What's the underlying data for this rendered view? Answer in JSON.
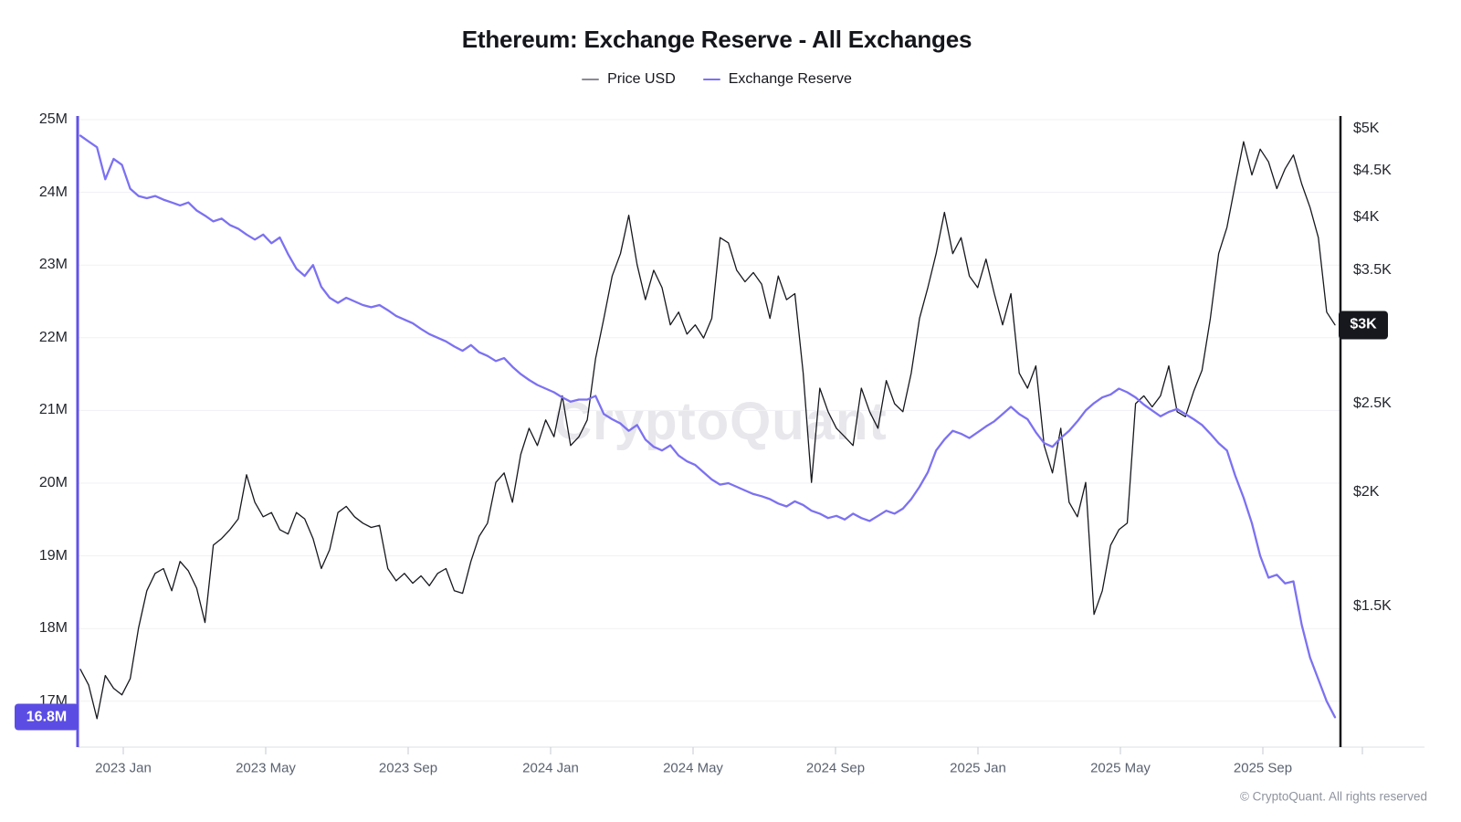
{
  "header": {
    "title": "Ethereum: Exchange Reserve - All Exchanges"
  },
  "legend": {
    "items": [
      {
        "label": "Price USD",
        "color": "#8b8b94"
      },
      {
        "label": "Exchange Reserve",
        "color": "#7c71f2"
      }
    ]
  },
  "watermark": "CryptoQuant",
  "footer": {
    "copyright": "© CryptoQuant. All rights reserved"
  },
  "badges": {
    "reserve_last": {
      "text": "16.8M",
      "bg": "#5b4de4"
    },
    "price_last": {
      "text": "$3K",
      "bg": "#17181d"
    }
  },
  "axes": {
    "left": {
      "labels": [
        "25M",
        "24M",
        "23M",
        "22M",
        "21M",
        "20M",
        "19M",
        "18M",
        "17M"
      ],
      "values": [
        25,
        24,
        23,
        22,
        21,
        20,
        19,
        18,
        17
      ]
    },
    "right": {
      "labels": [
        "$5K",
        "$4.5K",
        "$4K",
        "$3.5K",
        "$3K",
        "$2.5K",
        "$2K",
        "$1.5K"
      ],
      "values": [
        5000,
        4500,
        4000,
        3500,
        3000,
        2500,
        2000,
        1500
      ]
    },
    "x": {
      "labels": [
        "2023 Jan",
        "2023 May",
        "2023 Sep",
        "2024 Jan",
        "2024 May",
        "2024 Sep",
        "2025 Jan",
        "2025 May",
        "2025 Sep"
      ]
    }
  },
  "chart_data": {
    "type": "line",
    "title": "Ethereum: Exchange Reserve - All Exchanges",
    "x_range": [
      "2022-11-24",
      "2025-11-01"
    ],
    "sampling": "~weekly (152 points per series)",
    "legend_position": "top-center",
    "grid": "horizontal, faint",
    "left_axis": {
      "name": "Exchange Reserve",
      "unit": "M ETH",
      "scale": "linear",
      "ticks": [
        25,
        24,
        23,
        22,
        21,
        20,
        19,
        18,
        17
      ],
      "last_value_label": "16.8M"
    },
    "right_axis": {
      "name": "Price USD",
      "unit": "USD",
      "scale": "log",
      "ticks": [
        5000,
        4500,
        4000,
        3500,
        3000,
        2500,
        2000,
        1500
      ],
      "last_value_label": "$3K"
    },
    "series": [
      {
        "name": "Price USD",
        "axis": "right",
        "color": "#17181d",
        "unit": "USD",
        "values": [
          1280,
          1230,
          1130,
          1260,
          1220,
          1200,
          1250,
          1420,
          1560,
          1630,
          1650,
          1560,
          1680,
          1640,
          1570,
          1440,
          1750,
          1780,
          1820,
          1870,
          2090,
          1950,
          1880,
          1900,
          1820,
          1800,
          1900,
          1870,
          1780,
          1650,
          1730,
          1900,
          1930,
          1880,
          1850,
          1830,
          1840,
          1650,
          1600,
          1630,
          1590,
          1620,
          1580,
          1630,
          1650,
          1560,
          1550,
          1680,
          1790,
          1850,
          2050,
          2100,
          1950,
          2200,
          2350,
          2250,
          2400,
          2300,
          2550,
          2250,
          2300,
          2400,
          2800,
          3100,
          3450,
          3650,
          4020,
          3550,
          3250,
          3500,
          3350,
          3050,
          3150,
          2980,
          3050,
          2950,
          3100,
          3800,
          3750,
          3500,
          3400,
          3480,
          3380,
          3100,
          3450,
          3250,
          3300,
          2700,
          2050,
          2600,
          2450,
          2350,
          2300,
          2250,
          2600,
          2450,
          2350,
          2650,
          2500,
          2450,
          2700,
          3100,
          3350,
          3650,
          4050,
          3650,
          3800,
          3450,
          3350,
          3600,
          3300,
          3050,
          3300,
          2700,
          2600,
          2750,
          2250,
          2100,
          2350,
          1950,
          1880,
          2050,
          1470,
          1560,
          1750,
          1820,
          1850,
          2500,
          2550,
          2480,
          2550,
          2750,
          2450,
          2420,
          2580,
          2720,
          3100,
          3650,
          3900,
          4350,
          4840,
          4450,
          4750,
          4600,
          4300,
          4520,
          4680,
          4350,
          4100,
          3800,
          3150,
          3050
        ]
      },
      {
        "name": "Exchange Reserve",
        "axis": "left",
        "color": "#7c71f2",
        "unit": "M ETH",
        "values": [
          24.78,
          24.7,
          24.62,
          24.18,
          24.46,
          24.38,
          24.05,
          23.95,
          23.92,
          23.95,
          23.9,
          23.86,
          23.82,
          23.86,
          23.75,
          23.68,
          23.6,
          23.64,
          23.55,
          23.5,
          23.42,
          23.35,
          23.42,
          23.3,
          23.38,
          23.15,
          22.95,
          22.85,
          23.0,
          22.7,
          22.55,
          22.48,
          22.55,
          22.5,
          22.45,
          22.42,
          22.45,
          22.38,
          22.3,
          22.25,
          22.2,
          22.12,
          22.05,
          22.0,
          21.95,
          21.88,
          21.82,
          21.9,
          21.8,
          21.75,
          21.68,
          21.72,
          21.6,
          21.5,
          21.42,
          21.35,
          21.3,
          21.25,
          21.18,
          21.12,
          21.15,
          21.15,
          21.2,
          20.95,
          20.88,
          20.82,
          20.72,
          20.8,
          20.6,
          20.5,
          20.45,
          20.52,
          20.38,
          20.3,
          20.25,
          20.15,
          20.05,
          19.98,
          20.0,
          19.95,
          19.9,
          19.85,
          19.82,
          19.78,
          19.72,
          19.68,
          19.75,
          19.7,
          19.62,
          19.58,
          19.52,
          19.55,
          19.5,
          19.58,
          19.52,
          19.48,
          19.55,
          19.62,
          19.58,
          19.65,
          19.78,
          19.95,
          20.15,
          20.45,
          20.6,
          20.72,
          20.68,
          20.62,
          20.7,
          20.78,
          20.85,
          20.95,
          21.05,
          20.95,
          20.88,
          20.7,
          20.55,
          20.5,
          20.62,
          20.72,
          20.85,
          21.0,
          21.1,
          21.18,
          21.22,
          21.3,
          21.25,
          21.18,
          21.08,
          21.0,
          20.92,
          20.98,
          21.02,
          20.95,
          20.88,
          20.8,
          20.68,
          20.55,
          20.45,
          20.1,
          19.8,
          19.45,
          19.0,
          18.7,
          18.74,
          18.62,
          18.65,
          18.05,
          17.6,
          17.3,
          17.0,
          16.78
        ]
      }
    ]
  },
  "colors": {
    "reserve_line": "#7c71f2",
    "price_line": "#17181d",
    "left_axis_line": "#6152e8",
    "right_axis_line": "#15161a",
    "gridline": "#f1f1f4",
    "x_axis_line": "#e4e5e9",
    "tick": "#cfd2d8"
  }
}
